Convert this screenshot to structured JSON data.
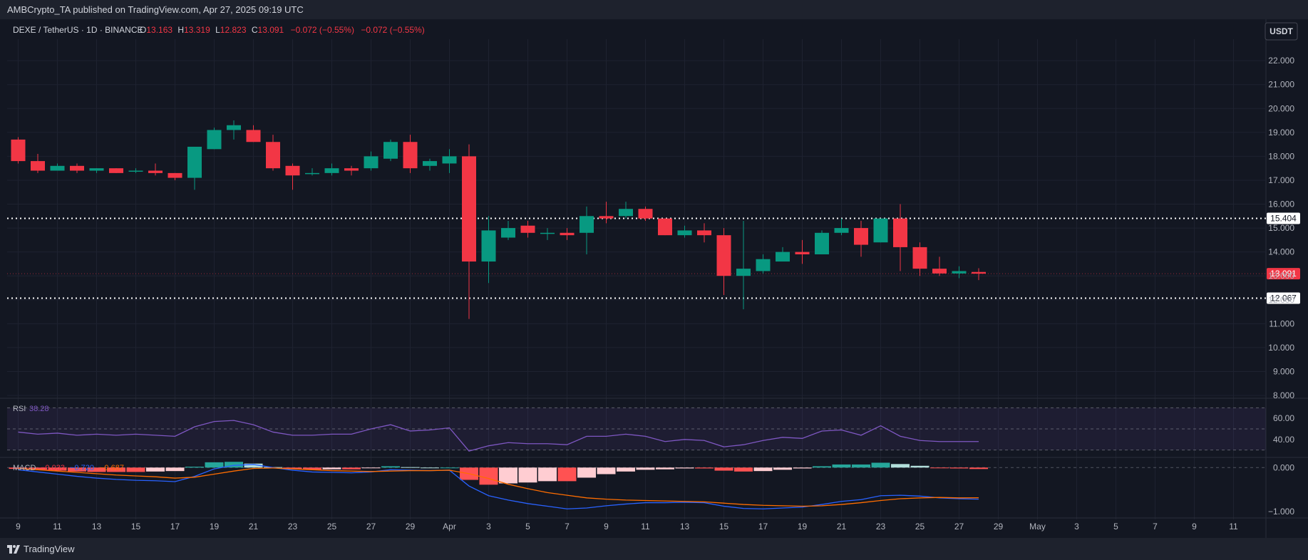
{
  "header": {
    "publisher_line": "AMBCrypto_TA published on TradingView.com, Apr 27, 2025 09:19 UTC",
    "symbol": "DEXE / TetherUS · 1D · BINANCE",
    "open_label": "O",
    "open": "13.163",
    "high_label": "H",
    "high": "13.319",
    "low_label": "L",
    "low": "12.823",
    "close_label": "C",
    "close": "13.091",
    "change": "−0.072 (−0.55%)",
    "change2": "−0.072 (−0.55%)",
    "currency": "USDT"
  },
  "footer": {
    "brand": "TradingView"
  },
  "colors": {
    "up": "#089981",
    "down": "#f23645",
    "background": "#131722",
    "grid": "#1e2230",
    "rsi": "#7e57c2",
    "macd": "#2962ff",
    "signal": "#ff6d00"
  },
  "chart_data": {
    "type": "candlestick",
    "price_axis": {
      "ticks": [
        "22.000",
        "21.000",
        "20.000",
        "19.000",
        "18.000",
        "17.000",
        "16.000",
        "15.000",
        "14.000",
        "13.000",
        "12.000",
        "11.000",
        "10.000",
        "9.000",
        "8.000"
      ],
      "range": [
        8,
        22.6
      ]
    },
    "levels": [
      {
        "value": 15.404,
        "label": "15.404",
        "style": "dotted"
      },
      {
        "value": 12.067,
        "label": "12.067",
        "style": "dotted"
      }
    ],
    "last_price": {
      "value": 13.091,
      "label": "13.091"
    },
    "x_labels": [
      "9",
      "11",
      "13",
      "15",
      "17",
      "19",
      "21",
      "23",
      "25",
      "27",
      "29",
      "Apr",
      "3",
      "5",
      "7",
      "9",
      "11",
      "13",
      "15",
      "17",
      "19",
      "21",
      "23",
      "25",
      "27",
      "29",
      "May",
      "3",
      "5",
      "7",
      "9",
      "11"
    ],
    "candles": [
      [
        "Mar 9",
        18.7,
        18.8,
        17.7,
        17.8
      ],
      [
        "Mar 10",
        17.8,
        18.1,
        17.3,
        17.4
      ],
      [
        "Mar 11",
        17.4,
        17.7,
        17.4,
        17.6
      ],
      [
        "Mar 12",
        17.6,
        17.7,
        17.3,
        17.4
      ],
      [
        "Mar 13",
        17.4,
        17.5,
        17.3,
        17.5
      ],
      [
        "Mar 14",
        17.5,
        17.5,
        17.3,
        17.3
      ],
      [
        "Mar 15",
        17.4,
        17.5,
        17.3,
        17.4
      ],
      [
        "Mar 16",
        17.4,
        17.7,
        17.2,
        17.3
      ],
      [
        "Mar 17",
        17.3,
        17.3,
        17.0,
        17.1
      ],
      [
        "Mar 18",
        17.1,
        18.4,
        16.6,
        18.4
      ],
      [
        "Mar 19",
        18.3,
        19.2,
        18.3,
        19.1
      ],
      [
        "Mar 20",
        19.1,
        19.5,
        18.7,
        19.3
      ],
      [
        "Mar 21",
        19.1,
        19.3,
        18.6,
        18.6
      ],
      [
        "Mar 22",
        18.6,
        18.9,
        17.4,
        17.5
      ],
      [
        "Mar 23",
        17.6,
        17.7,
        16.6,
        17.2
      ],
      [
        "Mar 24",
        17.3,
        17.5,
        17.2,
        17.3
      ],
      [
        "Mar 25",
        17.3,
        17.7,
        17.2,
        17.5
      ],
      [
        "Mar 26",
        17.5,
        17.6,
        17.2,
        17.4
      ],
      [
        "Mar 27",
        17.5,
        18.2,
        17.4,
        18.0
      ],
      [
        "Mar 28",
        17.9,
        18.7,
        17.8,
        18.6
      ],
      [
        "Mar 29",
        18.6,
        18.9,
        17.3,
        17.5
      ],
      [
        "Mar 30",
        17.6,
        17.9,
        17.4,
        17.8
      ],
      [
        "Mar 31",
        17.7,
        18.3,
        17.3,
        18.0
      ],
      [
        "Apr 1",
        18.0,
        18.5,
        11.2,
        13.6
      ],
      [
        "Apr 2",
        13.6,
        15.5,
        12.7,
        14.9
      ],
      [
        "Apr 3",
        14.6,
        15.3,
        14.5,
        15.0
      ],
      [
        "Apr 4",
        15.1,
        15.3,
        14.6,
        14.8
      ],
      [
        "Apr 5",
        14.8,
        15.0,
        14.5,
        14.8
      ],
      [
        "Apr 6",
        14.8,
        15.0,
        14.5,
        14.7
      ],
      [
        "Apr 7",
        14.8,
        15.9,
        13.9,
        15.5
      ],
      [
        "Apr 8",
        15.5,
        16.1,
        15.2,
        15.4
      ],
      [
        "Apr 9",
        15.5,
        16.1,
        15.4,
        15.8
      ],
      [
        "Apr 10",
        15.8,
        15.9,
        15.3,
        15.4
      ],
      [
        "Apr 11",
        15.4,
        15.4,
        14.7,
        14.7
      ],
      [
        "Apr 12",
        14.7,
        15.1,
        14.6,
        14.9
      ],
      [
        "Apr 13",
        14.9,
        15.2,
        14.4,
        14.7
      ],
      [
        "Apr 14",
        14.7,
        15.0,
        12.2,
        13.0
      ],
      [
        "Apr 15",
        13.0,
        15.3,
        11.6,
        13.3
      ],
      [
        "Apr 16",
        13.2,
        13.9,
        13.1,
        13.7
      ],
      [
        "Apr 17",
        13.6,
        14.2,
        13.6,
        14.0
      ],
      [
        "Apr 18",
        14.0,
        14.5,
        13.5,
        13.9
      ],
      [
        "Apr 19",
        13.9,
        14.9,
        13.9,
        14.8
      ],
      [
        "Apr 20",
        14.8,
        15.4,
        14.7,
        15.0
      ],
      [
        "Apr 21",
        15.0,
        15.3,
        13.8,
        14.3
      ],
      [
        "Apr 22",
        14.4,
        15.4,
        14.4,
        15.4
      ],
      [
        "Apr 23",
        15.4,
        16.0,
        13.2,
        14.2
      ],
      [
        "Apr 24",
        14.2,
        14.4,
        13.0,
        13.3
      ],
      [
        "Apr 25",
        13.3,
        13.8,
        13.0,
        13.1
      ],
      [
        "Apr 26",
        13.1,
        13.4,
        12.9,
        13.2
      ],
      [
        "Apr 27",
        13.163,
        13.319,
        12.823,
        13.091
      ]
    ],
    "rsi": {
      "label": "RSI",
      "value": "38.28",
      "ticks": [
        "60.00",
        "40.00"
      ],
      "bands": [
        70,
        50,
        30
      ],
      "range": [
        25,
        75
      ],
      "values": [
        47,
        45,
        46,
        44,
        45,
        44,
        45,
        44,
        43,
        52,
        57,
        58,
        54,
        47,
        44,
        44,
        45,
        45,
        50,
        54,
        48,
        49,
        51,
        29,
        34,
        37,
        36,
        36,
        35,
        43,
        43,
        45,
        43,
        38,
        40,
        39,
        33,
        35,
        39,
        42,
        41,
        48,
        49,
        44,
        53,
        43,
        39,
        38,
        38,
        38
      ]
    },
    "macd": {
      "label": "MACD",
      "hist_value": "−0.033",
      "macd_value": "−0.720",
      "signal_value": "−0.687",
      "ticks": [
        "0.000",
        "−1.000"
      ],
      "range": [
        -1.05,
        0.15
      ],
      "macd": [
        -0.05,
        -0.1,
        -0.15,
        -0.2,
        -0.24,
        -0.27,
        -0.29,
        -0.3,
        -0.32,
        -0.2,
        -0.03,
        0.05,
        0.07,
        0.0,
        -0.06,
        -0.1,
        -0.11,
        -0.12,
        -0.1,
        -0.05,
        -0.06,
        -0.07,
        -0.06,
        -0.42,
        -0.64,
        -0.74,
        -0.82,
        -0.88,
        -0.94,
        -0.92,
        -0.87,
        -0.83,
        -0.8,
        -0.8,
        -0.79,
        -0.8,
        -0.88,
        -0.93,
        -0.94,
        -0.92,
        -0.9,
        -0.84,
        -0.77,
        -0.73,
        -0.64,
        -0.63,
        -0.65,
        -0.69,
        -0.71,
        -0.72
      ],
      "signal": [
        -0.02,
        -0.05,
        -0.08,
        -0.11,
        -0.14,
        -0.17,
        -0.19,
        -0.21,
        -0.24,
        -0.22,
        -0.15,
        -0.08,
        -0.02,
        -0.01,
        -0.03,
        -0.05,
        -0.07,
        -0.08,
        -0.09,
        -0.08,
        -0.07,
        -0.07,
        -0.06,
        -0.14,
        -0.25,
        -0.38,
        -0.48,
        -0.57,
        -0.63,
        -0.69,
        -0.72,
        -0.74,
        -0.75,
        -0.76,
        -0.77,
        -0.78,
        -0.81,
        -0.84,
        -0.86,
        -0.87,
        -0.88,
        -0.87,
        -0.84,
        -0.8,
        -0.75,
        -0.71,
        -0.69,
        -0.68,
        -0.69,
        -0.687
      ],
      "histogram": [
        -0.03,
        -0.05,
        -0.07,
        -0.09,
        -0.1,
        -0.1,
        -0.1,
        -0.09,
        -0.08,
        0.02,
        0.12,
        0.13,
        0.09,
        0.01,
        -0.03,
        -0.05,
        -0.04,
        -0.04,
        -0.01,
        0.03,
        0.01,
        0.0,
        0.0,
        -0.28,
        -0.39,
        -0.36,
        -0.34,
        -0.31,
        -0.31,
        -0.23,
        -0.15,
        -0.09,
        -0.05,
        -0.04,
        -0.02,
        -0.02,
        -0.07,
        -0.09,
        -0.08,
        -0.05,
        -0.02,
        0.03,
        0.07,
        0.07,
        0.11,
        0.08,
        0.04,
        -0.01,
        -0.02,
        -0.033
      ]
    }
  }
}
